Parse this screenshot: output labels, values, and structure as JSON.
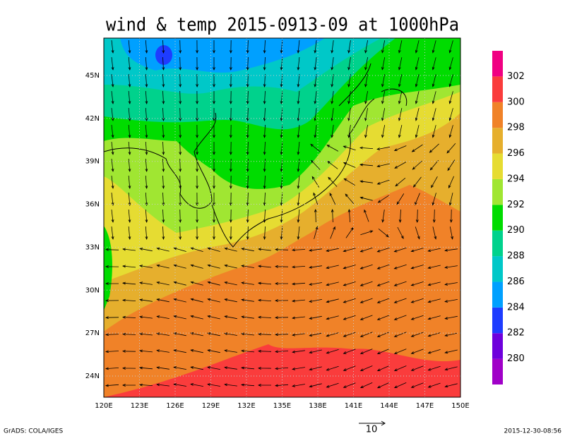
{
  "title": "wind & temp 2015-0913-09 at 1000hPa",
  "map": {
    "lat_labels": [
      "24N",
      "27N",
      "30N",
      "33N",
      "36N",
      "39N",
      "42N",
      "45N"
    ],
    "lon_labels": [
      "120E",
      "123E",
      "126E",
      "129E",
      "132E",
      "135E",
      "138E",
      "141E",
      "144E",
      "147E",
      "150E"
    ]
  },
  "colorbar": {
    "colors": [
      "#a000c8",
      "#6e00dc",
      "#1e3cff",
      "#00a0ff",
      "#00c8c8",
      "#00d28c",
      "#00dc00",
      "#a0e632",
      "#e6dc32",
      "#e6af2d",
      "#f08228",
      "#fa3c3c",
      "#f00082"
    ],
    "labels": [
      280,
      282,
      284,
      286,
      288,
      290,
      292,
      294,
      296,
      298,
      300,
      302
    ]
  },
  "vector_legend": "10",
  "footer": {
    "left": "GrADS: COLA/IGES",
    "right": "2015-12-30-08:56"
  }
}
